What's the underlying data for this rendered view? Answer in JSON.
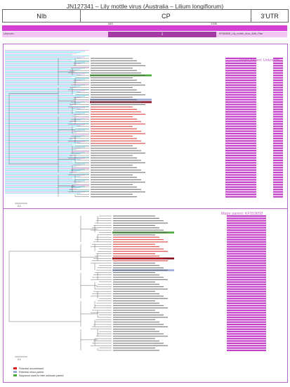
{
  "title": "JN127341 – Lily mottle virus (Australia – Lilium longiflorum)",
  "genome_regions": [
    "NIb",
    "CP",
    "3’UTR"
  ],
  "coordinates": {
    "start": "645",
    "end": "1336"
  },
  "bar_labels": {
    "left": "Unknown",
    "middle": "1",
    "right": "KF553658_Lily_mottle_virus_AMb_Plan"
  },
  "panels": [
    {
      "major_parent": "Major parent: Unknown",
      "scale": "0.1",
      "legend": [
        "Potential recombinant",
        "Potential minor parent",
        "Sequence used to infer unknown parent"
      ],
      "legend_colors": [
        "#d21a1a",
        "#9aa9d8",
        "#4aa93a"
      ]
    },
    {
      "major_parent": "Major parent: KF553658",
      "scale": "0.1",
      "legend": [
        "Potential recombinant",
        "Potential minor parent",
        "Sequence used to infer unknown parent"
      ],
      "legend_colors": [
        "#d21a1a",
        "#9aa9d8",
        "#4aa93a"
      ]
    }
  ],
  "colors": {
    "accent": "#c43fc9",
    "panel_border": "#b866c9",
    "cyan": "#4fd6e8",
    "recombinant": "#d21a1a",
    "minor_parent": "#9aa9d8",
    "unknown_parent": "#4aa93a"
  }
}
